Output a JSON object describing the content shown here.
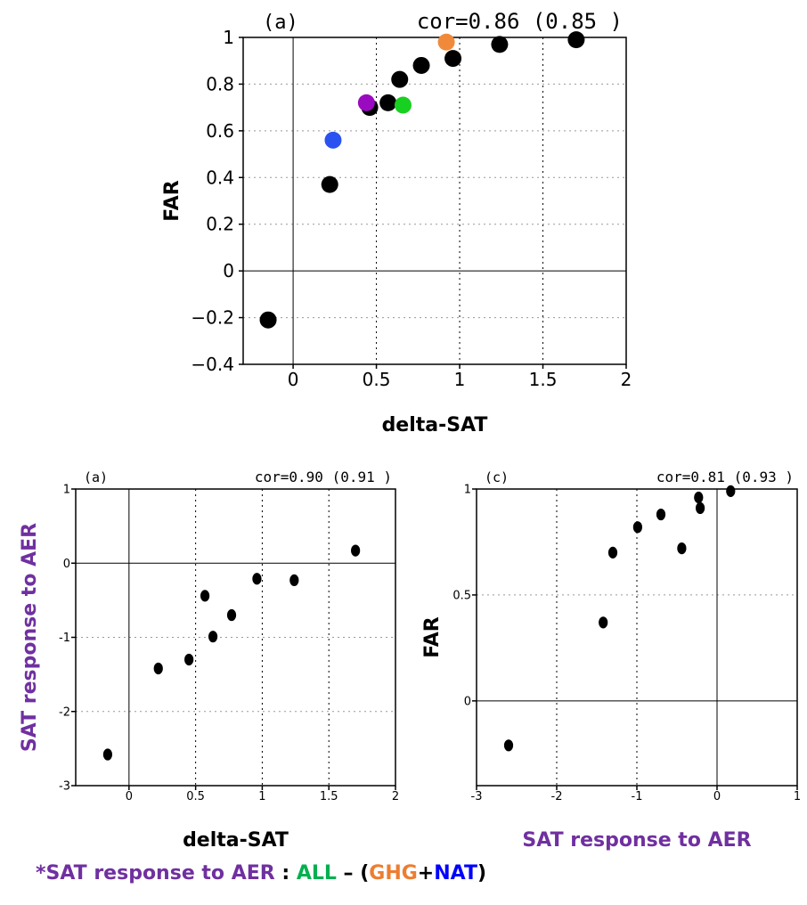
{
  "chart_data": [
    {
      "type": "scatter",
      "panel_label": "(a)",
      "annotation": "cor=0.86  (0.85  )",
      "xlabel": "delta-SAT",
      "ylabel": "FAR",
      "xlim": [
        -0.3,
        2
      ],
      "ylim": [
        -0.4,
        1
      ],
      "xticks": [
        0,
        0.5,
        1,
        1.5,
        2
      ],
      "xtick_labels": [
        "0",
        "0.5",
        "1",
        "1.5",
        "2"
      ],
      "yticks": [
        -0.4,
        -0.2,
        0,
        0.2,
        0.4,
        0.6,
        0.8,
        1
      ],
      "ytick_labels": [
        "−0.4",
        "−0.2",
        "0",
        "0.2",
        "0.4",
        "0.6",
        "0.8",
        "1"
      ],
      "grid": "dotted",
      "points": [
        {
          "x": -0.15,
          "y": -0.21,
          "color": "#000000"
        },
        {
          "x": 0.22,
          "y": 0.37,
          "color": "#000000"
        },
        {
          "x": 0.46,
          "y": 0.7,
          "color": "#000000"
        },
        {
          "x": 0.57,
          "y": 0.72,
          "color": "#000000"
        },
        {
          "x": 0.64,
          "y": 0.82,
          "color": "#000000"
        },
        {
          "x": 0.77,
          "y": 0.88,
          "color": "#000000"
        },
        {
          "x": 0.96,
          "y": 0.91,
          "color": "#000000"
        },
        {
          "x": 1.24,
          "y": 0.97,
          "color": "#000000"
        },
        {
          "x": 1.7,
          "y": 0.99,
          "color": "#000000"
        },
        {
          "x": 0.24,
          "y": 0.56,
          "color": "#2a52f0"
        },
        {
          "x": 0.44,
          "y": 0.72,
          "color": "#9a0ac0"
        },
        {
          "x": 0.66,
          "y": 0.71,
          "color": "#18d020"
        },
        {
          "x": 0.92,
          "y": 0.98,
          "color": "#f08a3a"
        }
      ]
    },
    {
      "type": "scatter",
      "panel_label": "(a)",
      "annotation": "cor=0.90  (0.91  )",
      "xlabel": "delta-SAT",
      "ylabel": "SAT response to AER",
      "xlim": [
        -0.4,
        2
      ],
      "ylim": [
        -3,
        1
      ],
      "xticks": [
        0,
        0.5,
        1,
        1.5,
        2
      ],
      "xtick_labels": [
        "0",
        "0.5",
        "1",
        "1.5",
        "2"
      ],
      "yticks": [
        -3,
        -2,
        -1,
        0,
        1
      ],
      "ytick_labels": [
        "-3",
        "-2",
        "-1",
        "0",
        "1"
      ],
      "grid": "dotted",
      "points": [
        {
          "x": -0.16,
          "y": -2.58
        },
        {
          "x": 0.22,
          "y": -1.42
        },
        {
          "x": 0.45,
          "y": -1.3
        },
        {
          "x": 0.57,
          "y": -0.44
        },
        {
          "x": 0.63,
          "y": -0.99
        },
        {
          "x": 0.77,
          "y": -0.7
        },
        {
          "x": 0.96,
          "y": -0.21
        },
        {
          "x": 1.24,
          "y": -0.23
        },
        {
          "x": 1.7,
          "y": 0.17
        }
      ]
    },
    {
      "type": "scatter",
      "panel_label": "(c)",
      "annotation": "cor=0.81  (0.93  )",
      "xlabel": "SAT response to AER",
      "ylabel": "FAR",
      "xlim": [
        -3,
        1
      ],
      "ylim": [
        -0.4,
        1
      ],
      "xticks": [
        -3,
        -2,
        -1,
        0,
        1
      ],
      "xtick_labels": [
        "-3",
        "-2",
        "-1",
        "0",
        "1"
      ],
      "yticks": [
        0,
        0.5,
        1
      ],
      "ytick_labels": [
        "0",
        "0.5",
        "1"
      ],
      "grid": "dotted",
      "points": [
        {
          "x": -2.6,
          "y": -0.21
        },
        {
          "x": -1.42,
          "y": 0.37
        },
        {
          "x": -1.3,
          "y": 0.7
        },
        {
          "x": -0.99,
          "y": 0.82
        },
        {
          "x": -0.7,
          "y": 0.88
        },
        {
          "x": -0.44,
          "y": 0.72
        },
        {
          "x": -0.23,
          "y": 0.96
        },
        {
          "x": -0.21,
          "y": 0.91
        },
        {
          "x": 0.17,
          "y": 0.99
        }
      ]
    }
  ],
  "footnote": {
    "prefix": "*SAT response to AER",
    "sep": " : ",
    "all": "ALL",
    "dash": " – (",
    "ghg": "GHG",
    "plus": "+",
    "nat": "NAT",
    "close": ")"
  },
  "colors": {
    "purple": "#7030a0",
    "green": "#00b050",
    "orange": "#ed7d31",
    "blue": "#0000ff"
  }
}
